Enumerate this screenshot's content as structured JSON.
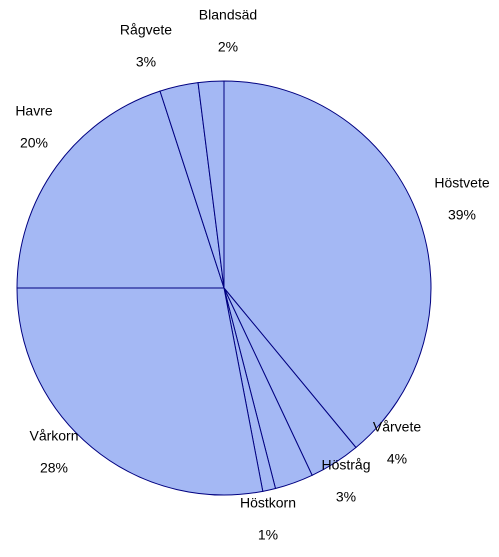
{
  "chart_data": {
    "type": "pie",
    "categories": [
      "Höstvete",
      "Vårvete",
      "Höstråg",
      "Höstkorn",
      "Vårkorn",
      "Havre",
      "Rågvete",
      "Blandsäd"
    ],
    "values": [
      39,
      4,
      3,
      1,
      28,
      20,
      3,
      2
    ],
    "value_labels": [
      "39%",
      "4%",
      "3%",
      "1%",
      "28%",
      "20%",
      "3%",
      "2%"
    ],
    "color": "#a4b8f4",
    "edge_color": "#000080"
  }
}
